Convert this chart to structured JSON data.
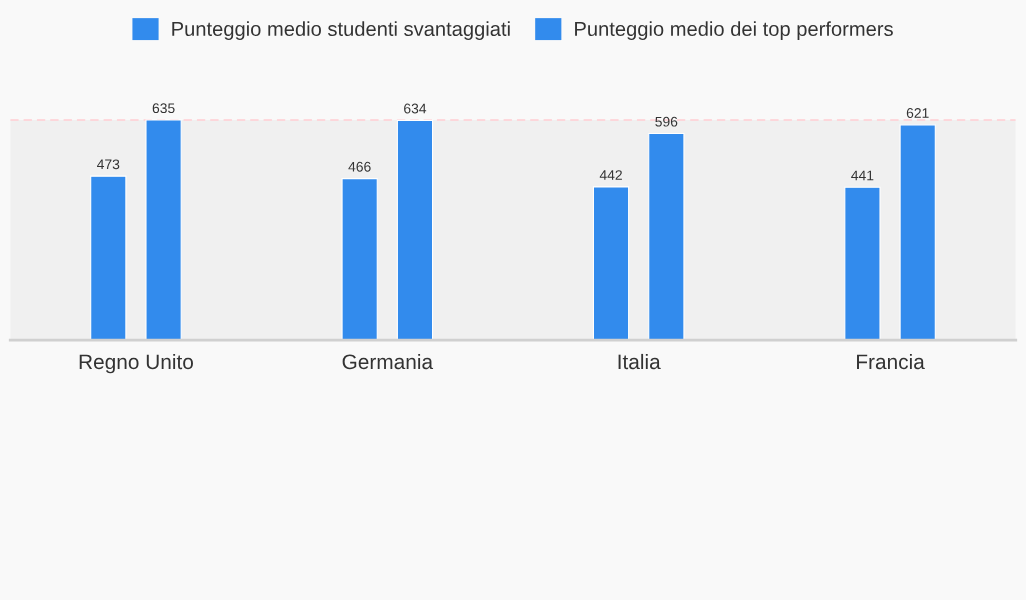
{
  "chart_data": {
    "type": "bar",
    "categories": [
      "Regno Unito",
      "Germania",
      "Italia",
      "Francia"
    ],
    "series": [
      {
        "name": "Punteggio medio studenti svantaggiati",
        "color": "#328bed",
        "values": [
          473,
          466,
          442,
          441
        ]
      },
      {
        "name": "Punteggio medio dei top performers",
        "color": "#328bed",
        "values": [
          635,
          634,
          596,
          621
        ]
      }
    ],
    "tick_labels": "x",
    "data_labels": true,
    "legend": "top",
    "grid": false,
    "ref_lines": [
      {
        "axis": "y",
        "value": 635,
        "color": "#ffcdd2",
        "line_style": "dashed"
      }
    ],
    "bands": [
      {
        "axis": "y",
        "from": 0,
        "to": 635,
        "color": "#f0f0f0"
      }
    ]
  }
}
